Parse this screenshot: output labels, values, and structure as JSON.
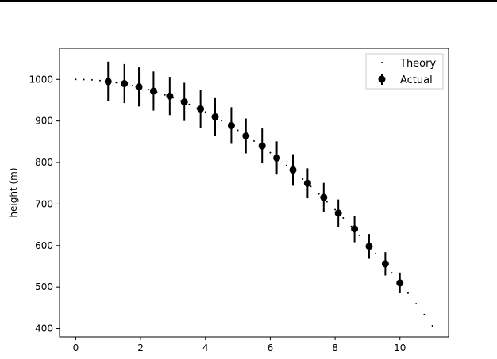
{
  "chart_data": {
    "type": "scatter",
    "xlabel": "",
    "ylabel": "height (m)",
    "xlim": [
      -0.5,
      11.5
    ],
    "ylim": [
      380,
      1075
    ],
    "x_ticks": [
      0,
      2,
      4,
      6,
      8,
      10
    ],
    "y_ticks": [
      400,
      500,
      600,
      700,
      800,
      900,
      1000
    ],
    "grid": false,
    "legend_position": "top-right",
    "series": [
      {
        "name": "Theory",
        "style": "dotted",
        "color": "#000000",
        "x": [
          0.0,
          0.25,
          0.5,
          0.75,
          1.0,
          1.25,
          1.5,
          1.75,
          2.0,
          2.25,
          2.5,
          2.75,
          3.0,
          3.25,
          3.5,
          3.75,
          4.0,
          4.25,
          4.5,
          4.75,
          5.0,
          5.25,
          5.5,
          5.75,
          6.0,
          6.25,
          6.5,
          6.75,
          7.0,
          7.25,
          7.5,
          7.75,
          8.0,
          8.25,
          8.5,
          8.75,
          9.0,
          9.25,
          9.5,
          9.75,
          10.0,
          10.25,
          10.5,
          10.75,
          11.0
        ],
        "y": [
          1000,
          999.7,
          998.8,
          997.2,
          995.1,
          992.3,
          989,
          985,
          980.4,
          975.2,
          969.4,
          962.9,
          955.9,
          948.2,
          940,
          931.1,
          921.6,
          911.5,
          900.8,
          889.5,
          877.5,
          865,
          851.8,
          838,
          823.6,
          808.6,
          792.9,
          776.7,
          759.9,
          742.4,
          724.3,
          705.6,
          686.4,
          666.5,
          645.8,
          624.6,
          602.8,
          580.6,
          557.6,
          534.2,
          509.9,
          485.2,
          459.9,
          433.6,
          406.8
        ]
      },
      {
        "name": "Actual",
        "style": "errorbar",
        "color": "#000000",
        "x": [
          1.0,
          1.5,
          1.95,
          2.4,
          2.9,
          3.35,
          3.85,
          4.3,
          4.8,
          5.25,
          5.75,
          6.2,
          6.7,
          7.15,
          7.65,
          8.1,
          8.6,
          9.05,
          9.55,
          10.0
        ],
        "y": [
          995,
          990,
          982,
          972,
          960,
          946,
          929,
          910,
          889,
          864,
          840,
          811,
          782,
          750,
          716,
          678,
          640,
          598,
          556,
          510
        ],
        "yerr": [
          48,
          47,
          47,
          47,
          46,
          46,
          46,
          45,
          44,
          42,
          42,
          40,
          38,
          36,
          35,
          33,
          32,
          30,
          28,
          25
        ]
      }
    ]
  }
}
